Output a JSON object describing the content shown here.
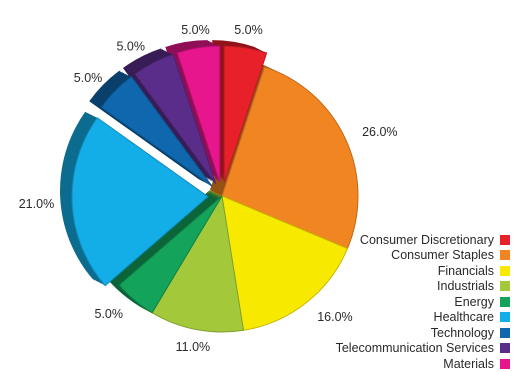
{
  "chart_data": {
    "type": "pie",
    "title": "",
    "categories": [
      "Consumer Discretionary",
      "Consumer Staples",
      "Financials",
      "Industrials",
      "Energy",
      "Healthcare",
      "Technology",
      "Telecommunication Services",
      "Materials"
    ],
    "values": [
      5.0,
      26.0,
      16.0,
      11.0,
      5.0,
      21.0,
      5.0,
      5.0,
      5.0
    ],
    "labels": [
      "5.0%",
      "26.0%",
      "16.0%",
      "11.0%",
      "5.0%",
      "21.0%",
      "5.0%",
      "5.0%",
      "5.0%"
    ],
    "colors": [
      "#e8202a",
      "#f08522",
      "#f7e900",
      "#a3c93a",
      "#14a35a",
      "#13aee8",
      "#0f68ad",
      "#5a2d8a",
      "#e8168c"
    ],
    "exploded": [
      "Consumer Discretionary",
      "Healthcare",
      "Technology",
      "Telecommunication Services",
      "Materials"
    ],
    "legend_position": "bottom-right",
    "is_3d": true
  }
}
